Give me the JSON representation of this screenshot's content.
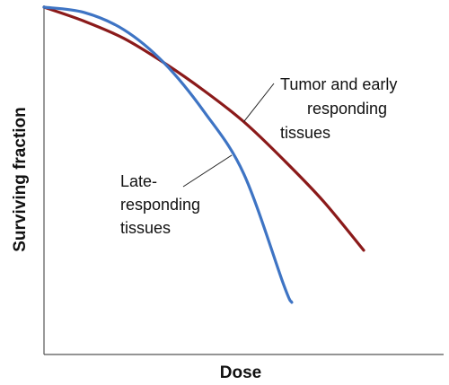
{
  "chart_data": {
    "type": "line",
    "title": "",
    "xlabel": "Dose",
    "ylabel": "Surviving fraction",
    "grid": false,
    "legend": "none",
    "xlim": [
      0,
      10
    ],
    "ylim": [
      0,
      1
    ],
    "series": [
      {
        "key": "tumor",
        "color": "#8b1a1a",
        "x": [
          0,
          1,
          2,
          3,
          4,
          5,
          6,
          7,
          8
        ],
        "y": [
          1.0,
          0.96,
          0.91,
          0.84,
          0.76,
          0.67,
          0.56,
          0.44,
          0.3
        ]
      },
      {
        "key": "late",
        "color": "#3e74c4",
        "x": [
          0,
          1,
          2,
          3,
          4,
          5,
          6,
          6.2
        ],
        "y": [
          1.0,
          0.985,
          0.935,
          0.84,
          0.7,
          0.52,
          0.2,
          0.15
        ]
      }
    ],
    "annotations": [
      {
        "key": "tumor",
        "lines": [
          "Tumor and early",
          "responding",
          "tissues"
        ],
        "points_to_x": 5.0,
        "points_to_series": "tumor"
      },
      {
        "key": "late",
        "lines": [
          "Late-",
          "responding",
          "tissues"
        ],
        "points_to_x": 4.7,
        "points_to_series": "late"
      }
    ]
  }
}
